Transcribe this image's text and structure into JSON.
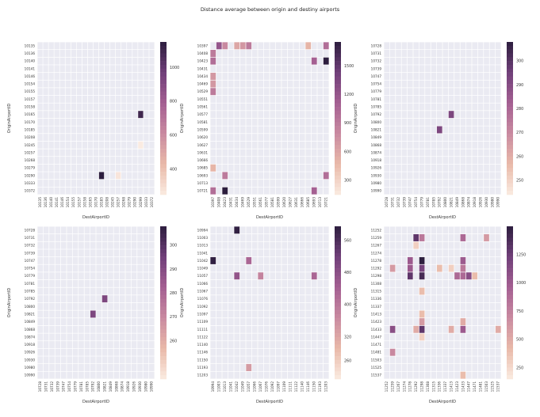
{
  "title": "Distance average between origin and destiny airports",
  "colors": {
    "cell_empty": "#eaeaf2",
    "grid_line": "#ffffff",
    "cmap_low": "#faebe1",
    "cmap_high": "#2d1e3e"
  },
  "chart_data": [
    {
      "type": "heatmap",
      "xlabel": "DestAirportID",
      "ylabel": "OriginAirportID",
      "rows": [
        "10135",
        "10136",
        "10140",
        "10141",
        "10146",
        "10154",
        "10155",
        "10157",
        "10158",
        "10165",
        "10170",
        "10185",
        "10208",
        "10245",
        "10257",
        "10268",
        "10279",
        "10290",
        "10333",
        "10372"
      ],
      "cols": [
        "10135",
        "10136",
        "10140",
        "10141",
        "10146",
        "10154",
        "10155",
        "10157",
        "10158",
        "10165",
        "10170",
        "10185",
        "10208",
        "10245",
        "10257",
        "10268",
        "10279",
        "10290",
        "10299",
        "10333",
        "10372"
      ],
      "cells": [
        [
          9,
          18,
          1100
        ],
        [
          13,
          18,
          250
        ],
        [
          17,
          11,
          1150
        ],
        [
          17,
          14,
          270
        ]
      ],
      "vmin": 250,
      "vmax": 1150,
      "cbar_ticks": [
        400,
        600,
        800,
        1000
      ]
    },
    {
      "type": "heatmap",
      "xlabel": "DestAirportID",
      "ylabel": "OriginAirportID",
      "rows": [
        "10397",
        "10408",
        "10423",
        "10431",
        "10434",
        "10469",
        "10529",
        "10551",
        "10561",
        "10577",
        "10581",
        "10599",
        "10620",
        "10627",
        "10631",
        "10666",
        "10685",
        "10693",
        "10713",
        "10721"
      ],
      "cols": [
        "10397",
        "10408",
        "10423",
        "10431",
        "10434",
        "10469",
        "10529",
        "10551",
        "10561",
        "10577",
        "10581",
        "10599",
        "10620",
        "10627",
        "10631",
        "10666",
        "10685",
        "10693",
        "10713",
        "10721"
      ],
      "cells": [
        [
          0,
          1,
          1200
        ],
        [
          0,
          2,
          800
        ],
        [
          0,
          4,
          600
        ],
        [
          0,
          5,
          700
        ],
        [
          0,
          6,
          900
        ],
        [
          0,
          16,
          500
        ],
        [
          0,
          19,
          1000
        ],
        [
          1,
          0,
          900
        ],
        [
          2,
          0,
          1000
        ],
        [
          2,
          17,
          1100
        ],
        [
          2,
          19,
          1750
        ],
        [
          4,
          0,
          700
        ],
        [
          5,
          0,
          700
        ],
        [
          6,
          0,
          900
        ],
        [
          16,
          0,
          500
        ],
        [
          17,
          2,
          900
        ],
        [
          17,
          19,
          1000
        ],
        [
          19,
          0,
          1000
        ],
        [
          19,
          2,
          1750
        ],
        [
          19,
          17,
          1100
        ]
      ],
      "vmin": 150,
      "vmax": 1750,
      "cbar_ticks": [
        300,
        600,
        900,
        1200,
        1500
      ]
    },
    {
      "type": "heatmap",
      "xlabel": "DestAirportID",
      "ylabel": "OriginAirportID",
      "rows": [
        "10728",
        "10731",
        "10732",
        "10739",
        "10747",
        "10754",
        "10779",
        "10781",
        "10785",
        "10792",
        "10800",
        "10821",
        "10849",
        "10868",
        "10874",
        "10918",
        "10926",
        "10930",
        "10980",
        "10990"
      ],
      "cols": [
        "10728",
        "10731",
        "10732",
        "10739",
        "10747",
        "10754",
        "10779",
        "10781",
        "10785",
        "10792",
        "10800",
        "10821",
        "10849",
        "10868",
        "10874",
        "10918",
        "10926",
        "10930",
        "10980",
        "10990"
      ],
      "cells": [
        [
          9,
          11,
          292
        ],
        [
          11,
          9,
          292
        ]
      ],
      "vmin": 244,
      "vmax": 308,
      "cbar_ticks": [
        250,
        260,
        270,
        280,
        290,
        300
      ]
    },
    {
      "type": "heatmap",
      "xlabel": "DestAirportID",
      "ylabel": "OriginAirportID",
      "rows": [
        "10728",
        "10731",
        "10732",
        "10739",
        "10747",
        "10754",
        "10779",
        "10781",
        "10785",
        "10792",
        "10800",
        "10821",
        "10849",
        "10868",
        "10874",
        "10918",
        "10926",
        "10930",
        "10980",
        "10990"
      ],
      "cols": [
        "10728",
        "10731",
        "10732",
        "10739",
        "10747",
        "10754",
        "10779",
        "10781",
        "10785",
        "10792",
        "10800",
        "10821",
        "10849",
        "10868",
        "10874",
        "10918",
        "10926",
        "10930",
        "10980",
        "10990"
      ],
      "cells": [
        [
          9,
          11,
          292
        ],
        [
          11,
          9,
          292
        ]
      ],
      "vmin": 244,
      "vmax": 308,
      "cbar_ticks": [
        260,
        270,
        280,
        290,
        300
      ]
    },
    {
      "type": "heatmap",
      "xlabel": "DestAirportID",
      "ylabel": "OriginAirportID",
      "rows": [
        "10994",
        "11003",
        "11013",
        "11041",
        "11042",
        "11049",
        "11057",
        "11066",
        "11067",
        "11076",
        "11092",
        "11097",
        "11109",
        "11111",
        "11122",
        "11140",
        "11146",
        "11150",
        "11193",
        "11203"
      ],
      "cols": [
        "10994",
        "11003",
        "11013",
        "11041",
        "11042",
        "11049",
        "11057",
        "11066",
        "11067",
        "11076",
        "11092",
        "11097",
        "11109",
        "11111",
        "11122",
        "11140",
        "11146",
        "11150",
        "11193",
        "11203"
      ],
      "cells": [
        [
          0,
          4,
          590
        ],
        [
          4,
          0,
          590
        ],
        [
          4,
          6,
          430
        ],
        [
          6,
          4,
          470
        ],
        [
          6,
          8,
          380
        ],
        [
          6,
          17,
          430
        ],
        [
          18,
          6,
          340
        ]
      ],
      "vmin": 215,
      "vmax": 595,
      "cbar_ticks": [
        260,
        320,
        400,
        480,
        560
      ]
    },
    {
      "type": "heatmap",
      "xlabel": "DestAirportID",
      "ylabel": "OriginAirportID",
      "rows": [
        "11252",
        "11259",
        "11267",
        "11274",
        "11278",
        "11292",
        "11298",
        "11308",
        "11315",
        "11336",
        "11337",
        "11413",
        "11423",
        "11433",
        "11447",
        "11471",
        "11481",
        "11503",
        "11525",
        "11537"
      ],
      "cols": [
        "11252",
        "11259",
        "11267",
        "11274",
        "11278",
        "11292",
        "11298",
        "11308",
        "11315",
        "11336",
        "11337",
        "11413",
        "11423",
        "11433",
        "11447",
        "11471",
        "11481",
        "11503",
        "11525",
        "11537"
      ],
      "cells": [
        [
          1,
          5,
          1300
        ],
        [
          1,
          6,
          800
        ],
        [
          1,
          13,
          900
        ],
        [
          1,
          17,
          600
        ],
        [
          2,
          5,
          300
        ],
        [
          4,
          4,
          1000
        ],
        [
          4,
          6,
          1500
        ],
        [
          4,
          13,
          1000
        ],
        [
          5,
          1,
          600
        ],
        [
          5,
          4,
          1000
        ],
        [
          5,
          6,
          1200
        ],
        [
          5,
          9,
          400
        ],
        [
          5,
          11,
          300
        ],
        [
          5,
          13,
          800
        ],
        [
          6,
          4,
          1300
        ],
        [
          6,
          6,
          1400
        ],
        [
          6,
          12,
          900
        ],
        [
          6,
          13,
          900
        ],
        [
          6,
          14,
          1100
        ],
        [
          6,
          15,
          400
        ],
        [
          8,
          6,
          400
        ],
        [
          11,
          6,
          400
        ],
        [
          12,
          6,
          600
        ],
        [
          12,
          13,
          500
        ],
        [
          13,
          1,
          1100
        ],
        [
          13,
          5,
          500
        ],
        [
          13,
          6,
          1300
        ],
        [
          13,
          11,
          500
        ],
        [
          13,
          13,
          1000
        ],
        [
          13,
          19,
          500
        ],
        [
          14,
          6,
          300
        ],
        [
          16,
          1,
          700
        ],
        [
          19,
          13,
          400
        ]
      ],
      "vmin": 150,
      "vmax": 1500,
      "cbar_ticks": [
        250,
        500,
        750,
        1000,
        1250
      ]
    }
  ]
}
